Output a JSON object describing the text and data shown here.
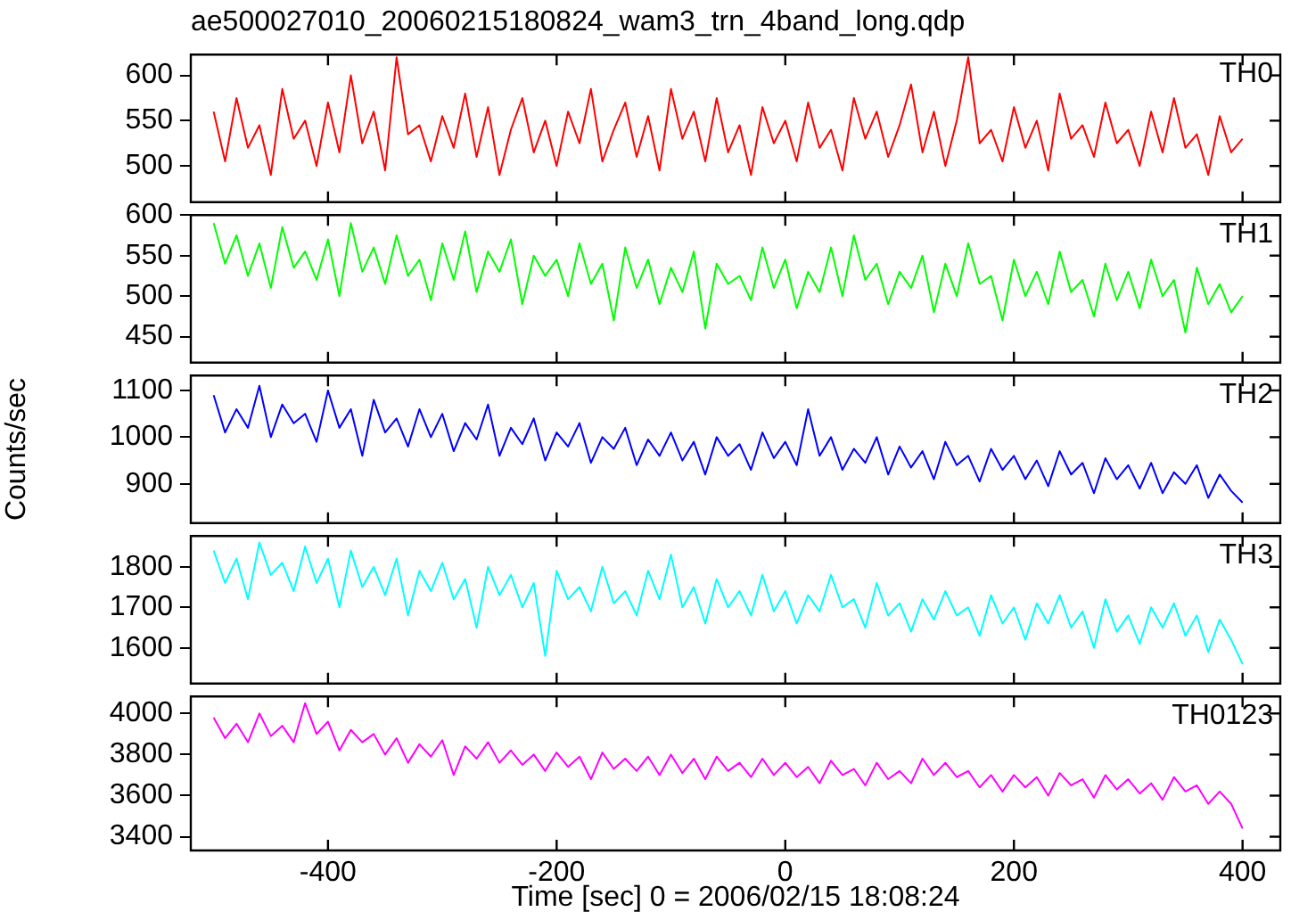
{
  "chart_data": [
    {
      "type": "line",
      "title": "ae500027010_20060215180824_wam3_trn_4band_long.qdp",
      "tick_labels": "y",
      "legend": false,
      "marker": "none",
      "xlim": [
        -520,
        433
      ],
      "xticks": [
        -400,
        -200,
        0,
        200,
        400
      ],
      "ylim": [
        460,
        623
      ],
      "yticks": [
        500,
        550,
        600
      ],
      "x": [
        -500,
        -490,
        -480,
        -470,
        -460,
        -450,
        -440,
        -430,
        -420,
        -410,
        -400,
        -390,
        -380,
        -370,
        -360,
        -350,
        -340,
        -330,
        -320,
        -310,
        -300,
        -290,
        -280,
        -270,
        -260,
        -250,
        -240,
        -230,
        -220,
        -210,
        -200,
        -190,
        -180,
        -170,
        -160,
        -150,
        -140,
        -130,
        -120,
        -110,
        -100,
        -90,
        -80,
        -70,
        -60,
        -50,
        -40,
        -30,
        -20,
        -10,
        0,
        10,
        20,
        30,
        40,
        50,
        60,
        70,
        80,
        90,
        100,
        110,
        120,
        130,
        140,
        150,
        160,
        170,
        180,
        190,
        200,
        210,
        220,
        230,
        240,
        250,
        260,
        270,
        280,
        290,
        300,
        310,
        320,
        330,
        340,
        350,
        360,
        370,
        380,
        390,
        400
      ],
      "series": [
        {
          "name": "TH0",
          "color": "#ff0000",
          "values": [
            560,
            505,
            575,
            520,
            545,
            490,
            585,
            530,
            550,
            500,
            570,
            515,
            600,
            525,
            560,
            495,
            620,
            535,
            545,
            505,
            555,
            520,
            580,
            510,
            565,
            490,
            540,
            575,
            515,
            550,
            500,
            560,
            525,
            585,
            505,
            540,
            570,
            510,
            555,
            495,
            585,
            530,
            560,
            505,
            575,
            515,
            545,
            490,
            565,
            525,
            550,
            505,
            570,
            520,
            540,
            495,
            575,
            530,
            560,
            510,
            545,
            590,
            515,
            560,
            500,
            550,
            620,
            525,
            540,
            505,
            565,
            520,
            550,
            495,
            580,
            530,
            545,
            510,
            570,
            525,
            540,
            500,
            560,
            515,
            575,
            520,
            535,
            490,
            555,
            515,
            530
          ]
        }
      ]
    },
    {
      "type": "line",
      "tick_labels": "y",
      "legend": false,
      "marker": "none",
      "xlim": [
        -520,
        433
      ],
      "xticks": [
        -400,
        -200,
        0,
        200,
        400
      ],
      "ylim": [
        418,
        600
      ],
      "yticks": [
        450,
        500,
        550,
        600
      ],
      "x": [
        -500,
        -490,
        -480,
        -470,
        -460,
        -450,
        -440,
        -430,
        -420,
        -410,
        -400,
        -390,
        -380,
        -370,
        -360,
        -350,
        -340,
        -330,
        -320,
        -310,
        -300,
        -290,
        -280,
        -270,
        -260,
        -250,
        -240,
        -230,
        -220,
        -210,
        -200,
        -190,
        -180,
        -170,
        -160,
        -150,
        -140,
        -130,
        -120,
        -110,
        -100,
        -90,
        -80,
        -70,
        -60,
        -50,
        -40,
        -30,
        -20,
        -10,
        0,
        10,
        20,
        30,
        40,
        50,
        60,
        70,
        80,
        90,
        100,
        110,
        120,
        130,
        140,
        150,
        160,
        170,
        180,
        190,
        200,
        210,
        220,
        230,
        240,
        250,
        260,
        270,
        280,
        290,
        300,
        310,
        320,
        330,
        340,
        350,
        360,
        370,
        380,
        390,
        400
      ],
      "series": [
        {
          "name": "TH1",
          "color": "#00ff00",
          "values": [
            590,
            540,
            575,
            525,
            565,
            510,
            585,
            535,
            555,
            520,
            570,
            500,
            590,
            530,
            560,
            515,
            575,
            525,
            545,
            495,
            565,
            520,
            580,
            505,
            555,
            530,
            570,
            490,
            550,
            525,
            545,
            500,
            565,
            515,
            540,
            470,
            560,
            510,
            545,
            490,
            535,
            505,
            555,
            460,
            540,
            515,
            525,
            495,
            560,
            510,
            545,
            485,
            530,
            505,
            560,
            500,
            575,
            520,
            540,
            490,
            530,
            510,
            550,
            480,
            540,
            500,
            565,
            515,
            525,
            470,
            545,
            500,
            530,
            490,
            555,
            505,
            520,
            475,
            540,
            495,
            530,
            485,
            545,
            500,
            520,
            455,
            535,
            490,
            515,
            480,
            500
          ]
        }
      ]
    },
    {
      "type": "line",
      "tick_labels": "y",
      "legend": false,
      "marker": "none",
      "ylabel": "Counts/sec",
      "xlim": [
        -520,
        433
      ],
      "xticks": [
        -400,
        -200,
        0,
        200,
        400
      ],
      "ylim": [
        816,
        1132
      ],
      "yticks": [
        900,
        1000,
        1100
      ],
      "x": [
        -500,
        -490,
        -480,
        -470,
        -460,
        -450,
        -440,
        -430,
        -420,
        -410,
        -400,
        -390,
        -380,
        -370,
        -360,
        -350,
        -340,
        -330,
        -320,
        -310,
        -300,
        -290,
        -280,
        -270,
        -260,
        -250,
        -240,
        -230,
        -220,
        -210,
        -200,
        -190,
        -180,
        -170,
        -160,
        -150,
        -140,
        -130,
        -120,
        -110,
        -100,
        -90,
        -80,
        -70,
        -60,
        -50,
        -40,
        -30,
        -20,
        -10,
        0,
        10,
        20,
        30,
        40,
        50,
        60,
        70,
        80,
        90,
        100,
        110,
        120,
        130,
        140,
        150,
        160,
        170,
        180,
        190,
        200,
        210,
        220,
        230,
        240,
        250,
        260,
        270,
        280,
        290,
        300,
        310,
        320,
        330,
        340,
        350,
        360,
        370,
        380,
        390,
        400
      ],
      "series": [
        {
          "name": "TH2",
          "color": "#0000ff",
          "values": [
            1090,
            1010,
            1060,
            1020,
            1110,
            1000,
            1070,
            1030,
            1050,
            990,
            1100,
            1020,
            1060,
            960,
            1080,
            1010,
            1040,
            980,
            1060,
            1000,
            1050,
            970,
            1030,
            995,
            1070,
            960,
            1020,
            985,
            1040,
            950,
            1010,
            980,
            1030,
            945,
            1000,
            975,
            1020,
            940,
            995,
            960,
            1010,
            950,
            990,
            920,
            1000,
            960,
            985,
            930,
            1010,
            955,
            990,
            940,
            1060,
            960,
            1000,
            930,
            975,
            945,
            1000,
            920,
            980,
            935,
            970,
            910,
            990,
            940,
            960,
            905,
            975,
            930,
            960,
            910,
            950,
            895,
            970,
            920,
            945,
            880,
            955,
            910,
            940,
            890,
            945,
            880,
            925,
            900,
            940,
            870,
            920,
            885,
            860
          ]
        }
      ]
    },
    {
      "type": "line",
      "tick_labels": "y",
      "legend": false,
      "marker": "none",
      "xlim": [
        -520,
        433
      ],
      "xticks": [
        -400,
        -200,
        0,
        200,
        400
      ],
      "ylim": [
        1512,
        1876
      ],
      "yticks": [
        1600,
        1700,
        1800
      ],
      "x": [
        -500,
        -490,
        -480,
        -470,
        -460,
        -450,
        -440,
        -430,
        -420,
        -410,
        -400,
        -390,
        -380,
        -370,
        -360,
        -350,
        -340,
        -330,
        -320,
        -310,
        -300,
        -290,
        -280,
        -270,
        -260,
        -250,
        -240,
        -230,
        -220,
        -210,
        -200,
        -190,
        -180,
        -170,
        -160,
        -150,
        -140,
        -130,
        -120,
        -110,
        -100,
        -90,
        -80,
        -70,
        -60,
        -50,
        -40,
        -30,
        -20,
        -10,
        0,
        10,
        20,
        30,
        40,
        50,
        60,
        70,
        80,
        90,
        100,
        110,
        120,
        130,
        140,
        150,
        160,
        170,
        180,
        190,
        200,
        210,
        220,
        230,
        240,
        250,
        260,
        270,
        280,
        290,
        300,
        310,
        320,
        330,
        340,
        350,
        360,
        370,
        380,
        390,
        400
      ],
      "series": [
        {
          "name": "TH3",
          "color": "#00ffff",
          "values": [
            1840,
            1760,
            1820,
            1720,
            1860,
            1780,
            1810,
            1740,
            1850,
            1760,
            1820,
            1700,
            1840,
            1750,
            1800,
            1730,
            1820,
            1680,
            1790,
            1740,
            1810,
            1720,
            1770,
            1650,
            1800,
            1730,
            1780,
            1700,
            1760,
            1580,
            1790,
            1720,
            1750,
            1690,
            1800,
            1710,
            1740,
            1680,
            1790,
            1720,
            1830,
            1700,
            1750,
            1660,
            1770,
            1700,
            1740,
            1680,
            1780,
            1690,
            1740,
            1660,
            1730,
            1690,
            1780,
            1700,
            1720,
            1650,
            1760,
            1680,
            1710,
            1640,
            1720,
            1670,
            1740,
            1680,
            1700,
            1630,
            1730,
            1660,
            1700,
            1620,
            1710,
            1660,
            1730,
            1650,
            1690,
            1600,
            1720,
            1640,
            1680,
            1610,
            1700,
            1650,
            1710,
            1630,
            1680,
            1590,
            1670,
            1620,
            1560
          ]
        }
      ]
    },
    {
      "type": "line",
      "legend": false,
      "marker": "none",
      "xlabel": "Time [sec] 0 = 2006/02/15 18:08:24",
      "xlim": [
        -520,
        433
      ],
      "xticks": [
        -400,
        -200,
        0,
        200,
        400
      ],
      "ylim": [
        3333,
        4083
      ],
      "yticks": [
        3400,
        3600,
        3800,
        4000
      ],
      "x": [
        -500,
        -490,
        -480,
        -470,
        -460,
        -450,
        -440,
        -430,
        -420,
        -410,
        -400,
        -390,
        -380,
        -370,
        -360,
        -350,
        -340,
        -330,
        -320,
        -310,
        -300,
        -290,
        -280,
        -270,
        -260,
        -250,
        -240,
        -230,
        -220,
        -210,
        -200,
        -190,
        -180,
        -170,
        -160,
        -150,
        -140,
        -130,
        -120,
        -110,
        -100,
        -90,
        -80,
        -70,
        -60,
        -50,
        -40,
        -30,
        -20,
        -10,
        0,
        10,
        20,
        30,
        40,
        50,
        60,
        70,
        80,
        90,
        100,
        110,
        120,
        130,
        140,
        150,
        160,
        170,
        180,
        190,
        200,
        210,
        220,
        230,
        240,
        250,
        260,
        270,
        280,
        290,
        300,
        310,
        320,
        330,
        340,
        350,
        360,
        370,
        380,
        390,
        400
      ],
      "series": [
        {
          "name": "TH0123",
          "color": "#ff00ff",
          "values": [
            3980,
            3880,
            3950,
            3860,
            4000,
            3890,
            3940,
            3860,
            4050,
            3900,
            3960,
            3820,
            3920,
            3860,
            3900,
            3800,
            3880,
            3760,
            3850,
            3790,
            3870,
            3700,
            3840,
            3780,
            3860,
            3760,
            3820,
            3750,
            3800,
            3720,
            3810,
            3740,
            3790,
            3680,
            3810,
            3730,
            3780,
            3720,
            3790,
            3700,
            3800,
            3710,
            3780,
            3680,
            3790,
            3720,
            3760,
            3690,
            3780,
            3700,
            3760,
            3690,
            3740,
            3660,
            3770,
            3700,
            3730,
            3650,
            3760,
            3680,
            3720,
            3660,
            3780,
            3700,
            3760,
            3690,
            3720,
            3640,
            3700,
            3620,
            3700,
            3640,
            3690,
            3600,
            3710,
            3650,
            3680,
            3590,
            3700,
            3630,
            3680,
            3610,
            3660,
            3580,
            3690,
            3620,
            3650,
            3560,
            3620,
            3560,
            3440
          ]
        }
      ]
    }
  ]
}
